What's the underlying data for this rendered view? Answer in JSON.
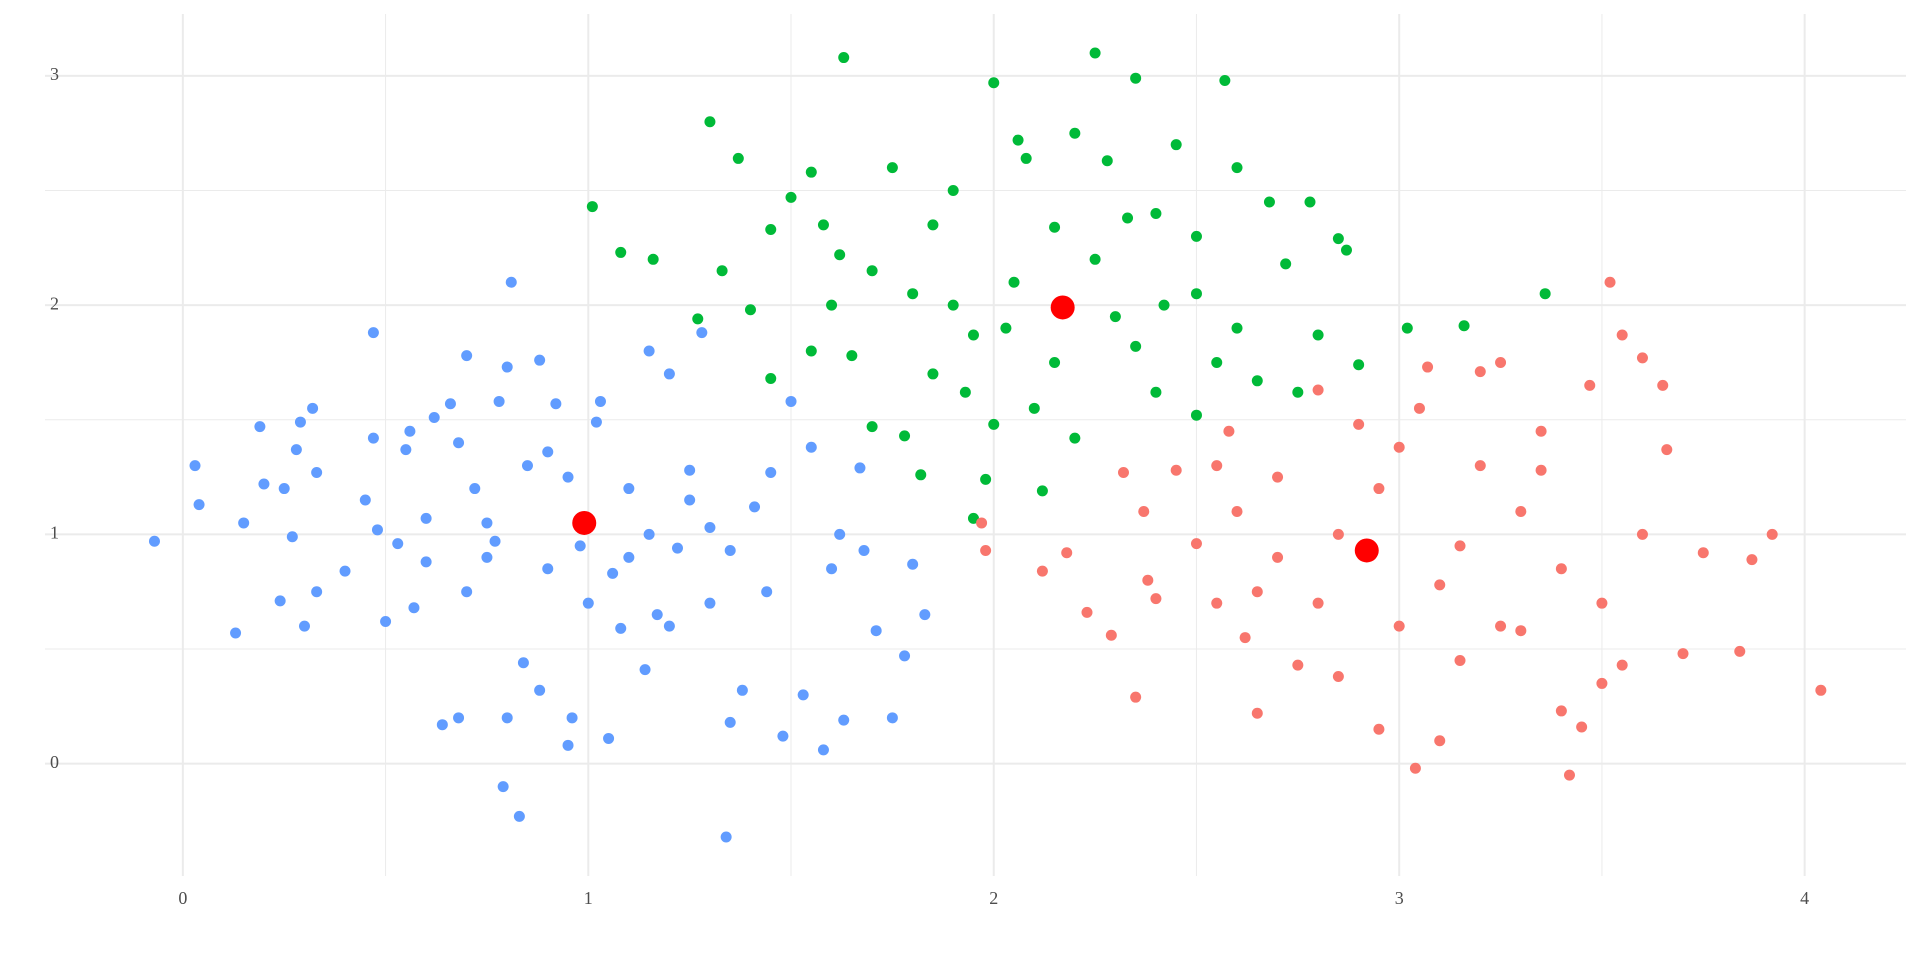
{
  "chart_data": {
    "type": "scatter",
    "xlim": [
      -0.34,
      4.25
    ],
    "ylim": [
      -0.49,
      3.27
    ],
    "xticks": [
      0,
      1,
      2,
      3,
      4
    ],
    "yticks": [
      0,
      1,
      2,
      3
    ],
    "x_minor_grid": [
      0.5,
      1.5,
      2.5,
      3.5
    ],
    "y_minor_grid": [
      0.5,
      1.5,
      2.5
    ],
    "grid": true,
    "grid_color": "#ebebeb",
    "series": [
      {
        "color": "#619CFF",
        "point_size": 5.5,
        "x": [
          -0.07,
          0.03,
          0.04,
          0.13,
          0.15,
          0.19,
          0.2,
          0.24,
          0.25,
          0.27,
          0.28,
          0.29,
          0.3,
          0.32,
          0.33,
          0.33,
          0.45,
          0.47,
          0.47,
          0.48,
          0.5,
          0.53,
          0.55,
          0.56,
          0.57,
          0.6,
          0.62,
          0.64,
          0.66,
          0.68,
          0.68,
          0.7,
          0.72,
          0.75,
          0.77,
          0.78,
          0.79,
          0.8,
          0.8,
          0.81,
          0.83,
          0.84,
          0.88,
          0.88,
          0.9,
          0.92,
          0.95,
          0.96,
          1.02,
          1.03,
          1.06,
          1.05,
          1.08,
          1.1,
          1.14,
          1.15,
          1.17,
          1.2,
          1.22,
          1.25,
          1.28,
          1.3,
          1.34,
          1.35,
          1.38,
          1.41,
          1.44,
          1.48,
          1.5,
          1.53,
          1.55,
          1.58,
          1.6,
          1.63,
          1.67,
          1.71,
          1.75,
          1.78,
          1.8,
          1.83,
          1.68,
          1.62,
          1.45,
          1.35,
          0.98,
          1.1,
          1.2,
          0.9,
          0.85,
          0.7,
          1.0,
          1.3,
          1.15,
          0.6,
          0.4,
          1.25,
          0.95,
          0.75
        ],
        "values": [
          0.97,
          1.3,
          1.13,
          0.57,
          1.05,
          1.47,
          1.22,
          0.71,
          1.2,
          0.99,
          1.37,
          1.49,
          0.6,
          1.55,
          0.75,
          1.27,
          1.15,
          1.42,
          1.88,
          1.02,
          0.62,
          0.96,
          1.37,
          1.45,
          0.68,
          1.07,
          1.51,
          0.17,
          1.57,
          1.4,
          0.2,
          1.78,
          1.2,
          1.05,
          0.97,
          1.58,
          -0.1,
          0.2,
          1.73,
          2.1,
          -0.23,
          0.44,
          0.32,
          1.76,
          1.36,
          1.57,
          0.08,
          0.2,
          1.49,
          1.58,
          0.83,
          0.11,
          0.59,
          1.2,
          0.41,
          1.8,
          0.65,
          1.7,
          0.94,
          1.28,
          1.88,
          1.03,
          -0.32,
          0.18,
          0.32,
          1.12,
          0.75,
          0.12,
          1.58,
          0.3,
          1.38,
          0.06,
          0.85,
          0.19,
          1.29,
          0.58,
          0.2,
          0.47,
          0.87,
          0.65,
          0.93,
          1.0,
          1.27,
          0.93,
          0.95,
          0.9,
          0.6,
          0.85,
          1.3,
          0.75,
          0.7,
          0.7,
          1.0,
          0.88,
          0.84,
          1.15,
          1.25,
          0.9
        ]
      },
      {
        "color": "#00BA38",
        "point_size": 5.5,
        "x": [
          1.01,
          1.08,
          1.16,
          1.3,
          1.37,
          1.27,
          1.33,
          1.4,
          1.45,
          1.5,
          1.55,
          1.63,
          1.62,
          1.58,
          1.65,
          1.7,
          1.75,
          1.78,
          1.8,
          1.82,
          1.85,
          1.9,
          1.93,
          1.95,
          1.98,
          2.0,
          2.03,
          2.06,
          2.08,
          2.1,
          2.12,
          2.15,
          2.2,
          2.25,
          2.28,
          2.3,
          2.33,
          2.35,
          2.4,
          2.42,
          2.45,
          2.5,
          2.5,
          2.55,
          2.57,
          2.6,
          2.65,
          2.68,
          2.72,
          2.75,
          2.78,
          2.8,
          2.85,
          2.87,
          2.9,
          3.02,
          3.16,
          3.36,
          2.5,
          2.2,
          1.95,
          2.05,
          2.25,
          1.9,
          1.7,
          1.55,
          2.35,
          2.6,
          2.0,
          2.15,
          1.45,
          1.6,
          2.4,
          1.85
        ],
        "values": [
          2.43,
          2.23,
          2.2,
          2.8,
          2.64,
          1.94,
          2.15,
          1.98,
          2.33,
          2.47,
          2.58,
          3.08,
          2.22,
          2.35,
          1.78,
          1.47,
          2.6,
          1.43,
          2.05,
          1.26,
          2.35,
          2.5,
          1.62,
          1.07,
          1.24,
          2.97,
          1.9,
          2.72,
          2.64,
          1.55,
          1.19,
          2.34,
          2.75,
          3.1,
          2.63,
          1.95,
          2.38,
          2.99,
          1.62,
          2.0,
          2.7,
          2.3,
          1.52,
          1.75,
          2.98,
          2.6,
          1.67,
          2.45,
          2.18,
          1.62,
          2.45,
          1.87,
          2.29,
          2.24,
          1.74,
          1.9,
          1.91,
          2.05,
          2.05,
          1.42,
          1.87,
          2.1,
          2.2,
          2.0,
          2.15,
          1.8,
          1.82,
          1.9,
          1.48,
          1.75,
          1.68,
          2.0,
          2.4,
          1.7
        ]
      },
      {
        "color": "#F8766D",
        "point_size": 5.5,
        "x": [
          1.97,
          1.98,
          2.12,
          2.18,
          2.23,
          2.29,
          2.35,
          2.32,
          2.37,
          2.38,
          2.4,
          2.45,
          2.5,
          2.55,
          2.58,
          2.62,
          2.65,
          2.7,
          2.75,
          2.8,
          2.85,
          2.9,
          2.95,
          3.0,
          3.04,
          3.07,
          3.1,
          3.15,
          3.2,
          3.25,
          3.3,
          3.35,
          3.4,
          3.42,
          3.45,
          3.47,
          3.5,
          3.52,
          3.55,
          3.6,
          3.65,
          3.66,
          3.7,
          3.75,
          3.84,
          3.87,
          3.92,
          4.04,
          3.55,
          3.3,
          3.1,
          2.85,
          3.0,
          2.7,
          3.2,
          3.4,
          2.6,
          3.6,
          2.95,
          3.15,
          2.8,
          3.5,
          2.65,
          3.25,
          3.05,
          2.55,
          3.35
        ],
        "values": [
          1.05,
          0.93,
          0.84,
          0.92,
          0.66,
          0.56,
          0.29,
          1.27,
          1.1,
          0.8,
          0.72,
          1.28,
          0.96,
          0.7,
          1.45,
          0.55,
          0.22,
          1.25,
          0.43,
          1.63,
          0.38,
          1.48,
          0.15,
          1.38,
          -0.02,
          1.73,
          0.1,
          0.45,
          1.71,
          1.75,
          0.58,
          1.28,
          0.23,
          -0.05,
          0.16,
          1.65,
          0.35,
          2.1,
          1.87,
          1.77,
          1.65,
          1.37,
          0.48,
          0.92,
          0.49,
          0.89,
          1.0,
          0.32,
          0.43,
          1.1,
          0.78,
          1.0,
          0.6,
          0.9,
          1.3,
          0.85,
          1.1,
          1.0,
          1.2,
          0.95,
          0.7,
          0.7,
          0.75,
          0.6,
          1.55,
          1.3,
          1.45
        ]
      },
      {
        "color": "#FF0000",
        "point_size": 12,
        "x": [
          0.99,
          2.17,
          2.92
        ],
        "values": [
          1.05,
          1.99,
          0.93
        ]
      }
    ]
  }
}
